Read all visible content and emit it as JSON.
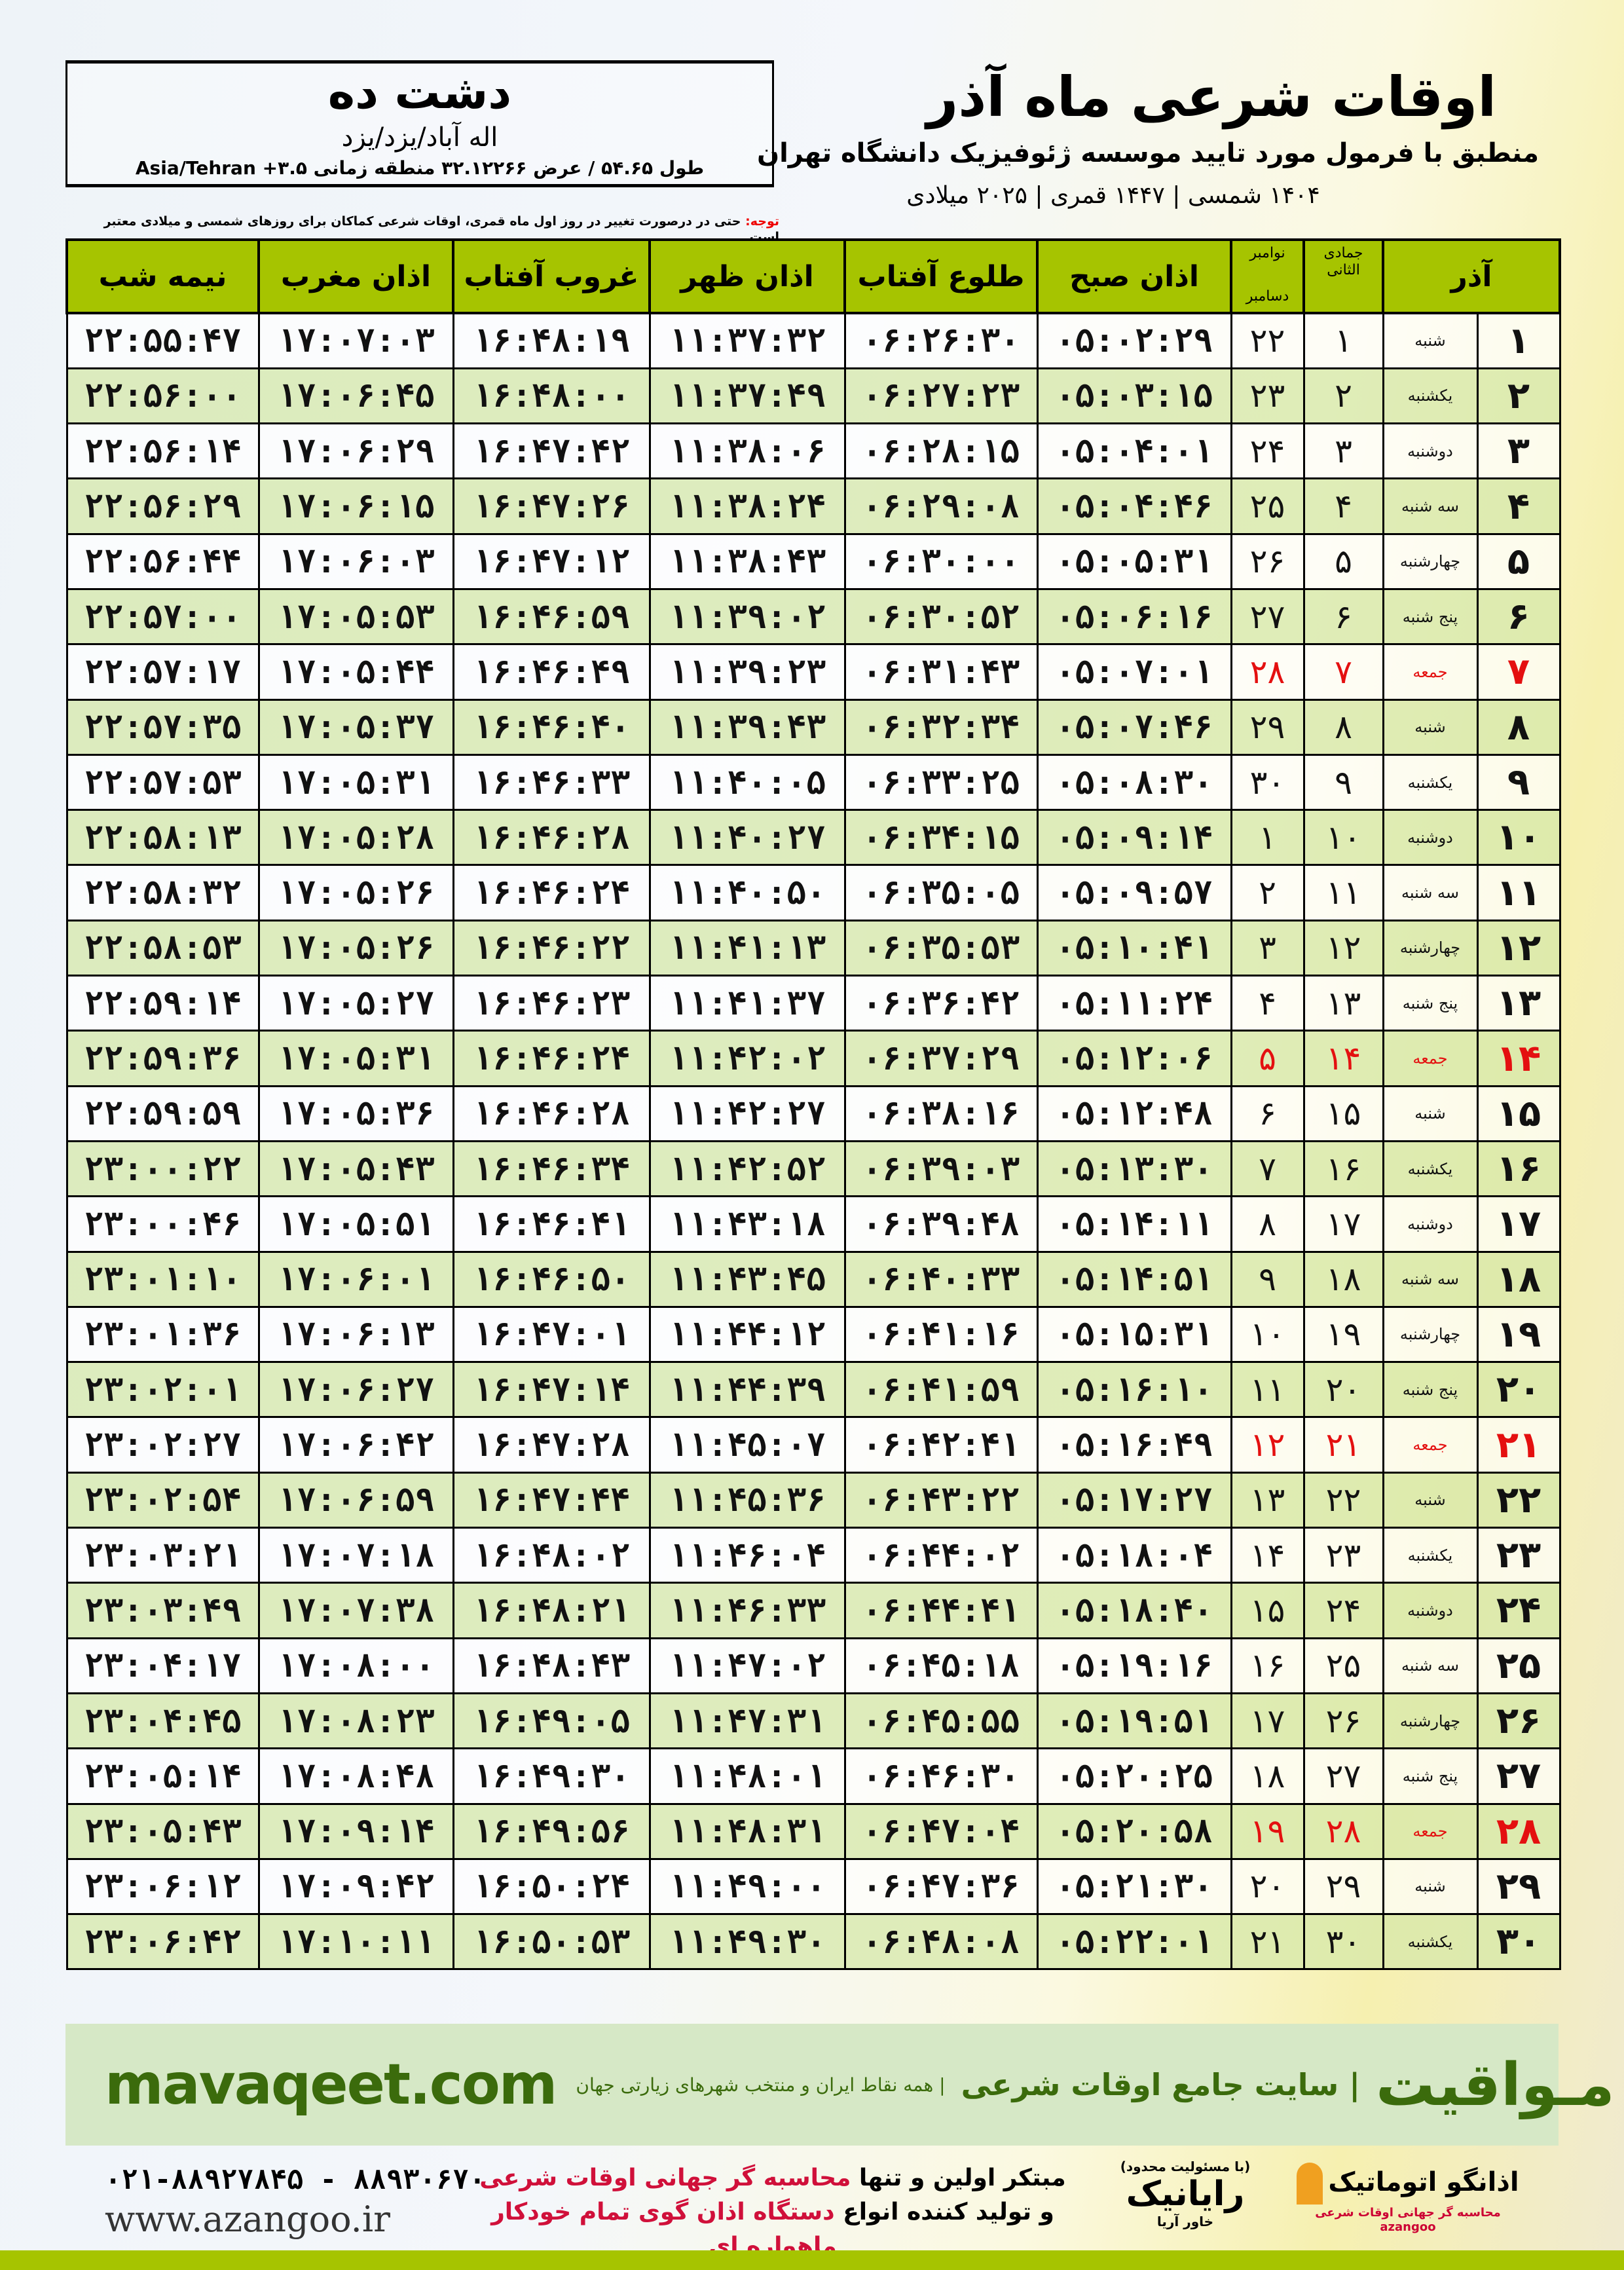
{
  "header": {
    "city": "دشت ده",
    "region": "اله آباد/یزد/یزد",
    "coords": "طول ۵۴.۶۵ / عرض ۳۲.۱۲۲۶۶ منطقه زمانی ۳.۵+ Asia/Tehran",
    "title": "اوقات شرعی ماه آذر",
    "subtitle": "منطبق با فرمول مورد تایید موسسه ژئوفیزیک دانشگاه تهران",
    "years": "۱۴۰۴ شمسی | ۱۴۴۷ قمری | ۲۰۲۵ میلادی",
    "note_label": "توجه:",
    "note_text": " حتی در درصورت تغییر در روز اول ماه قمری، اوقات شرعی کماکان برای روزهای شمسی و میلادی معتبر است."
  },
  "table": {
    "columns": {
      "month": "آذر",
      "hijri": "جمادی الثانی",
      "greg_top": "نوامبر",
      "greg_bottom": "دسامبر",
      "fajr": "اذان صبح",
      "sunrise": "طلوع آفتاب",
      "dhuhr": "اذان ظهر",
      "sunset": "غروب آفتاب",
      "maghrib": "اذان مغرب",
      "midnight": "نیمه شب"
    },
    "friday_color": "#e41010",
    "header_color": "#a6c400",
    "rows": [
      [
        "۱",
        "شنبه",
        "۱",
        "۲۲",
        "۰۵:۰۲:۲۹",
        "۰۶:۲۶:۳۰",
        "۱۱:۳۷:۳۲",
        "۱۶:۴۸:۱۹",
        "۱۷:۰۷:۰۳",
        "۲۲:۵۵:۴۷"
      ],
      [
        "۲",
        "یکشنبه",
        "۲",
        "۲۳",
        "۰۵:۰۳:۱۵",
        "۰۶:۲۷:۲۳",
        "۱۱:۳۷:۴۹",
        "۱۶:۴۸:۰۰",
        "۱۷:۰۶:۴۵",
        "۲۲:۵۶:۰۰"
      ],
      [
        "۳",
        "دوشنبه",
        "۳",
        "۲۴",
        "۰۵:۰۴:۰۱",
        "۰۶:۲۸:۱۵",
        "۱۱:۳۸:۰۶",
        "۱۶:۴۷:۴۲",
        "۱۷:۰۶:۲۹",
        "۲۲:۵۶:۱۴"
      ],
      [
        "۴",
        "سه شنبه",
        "۴",
        "۲۵",
        "۰۵:۰۴:۴۶",
        "۰۶:۲۹:۰۸",
        "۱۱:۳۸:۲۴",
        "۱۶:۴۷:۲۶",
        "۱۷:۰۶:۱۵",
        "۲۲:۵۶:۲۹"
      ],
      [
        "۵",
        "چهارشنبه",
        "۵",
        "۲۶",
        "۰۵:۰۵:۳۱",
        "۰۶:۳۰:۰۰",
        "۱۱:۳۸:۴۳",
        "۱۶:۴۷:۱۲",
        "۱۷:۰۶:۰۳",
        "۲۲:۵۶:۴۴"
      ],
      [
        "۶",
        "پنج شنبه",
        "۶",
        "۲۷",
        "۰۵:۰۶:۱۶",
        "۰۶:۳۰:۵۲",
        "۱۱:۳۹:۰۲",
        "۱۶:۴۶:۵۹",
        "۱۷:۰۵:۵۳",
        "۲۲:۵۷:۰۰"
      ],
      [
        "۷",
        "جمعه",
        "۷",
        "۲۸",
        "۰۵:۰۷:۰۱",
        "۰۶:۳۱:۴۳",
        "۱۱:۳۹:۲۳",
        "۱۶:۴۶:۴۹",
        "۱۷:۰۵:۴۴",
        "۲۲:۵۷:۱۷"
      ],
      [
        "۸",
        "شنبه",
        "۸",
        "۲۹",
        "۰۵:۰۷:۴۶",
        "۰۶:۳۲:۳۴",
        "۱۱:۳۹:۴۳",
        "۱۶:۴۶:۴۰",
        "۱۷:۰۵:۳۷",
        "۲۲:۵۷:۳۵"
      ],
      [
        "۹",
        "یکشنبه",
        "۹",
        "۳۰",
        "۰۵:۰۸:۳۰",
        "۰۶:۳۳:۲۵",
        "۱۱:۴۰:۰۵",
        "۱۶:۴۶:۳۳",
        "۱۷:۰۵:۳۱",
        "۲۲:۵۷:۵۳"
      ],
      [
        "۱۰",
        "دوشنبه",
        "۱۰",
        "۱",
        "۰۵:۰۹:۱۴",
        "۰۶:۳۴:۱۵",
        "۱۱:۴۰:۲۷",
        "۱۶:۴۶:۲۸",
        "۱۷:۰۵:۲۸",
        "۲۲:۵۸:۱۳"
      ],
      [
        "۱۱",
        "سه شنبه",
        "۱۱",
        "۲",
        "۰۵:۰۹:۵۷",
        "۰۶:۳۵:۰۵",
        "۱۱:۴۰:۵۰",
        "۱۶:۴۶:۲۴",
        "۱۷:۰۵:۲۶",
        "۲۲:۵۸:۳۲"
      ],
      [
        "۱۲",
        "چهارشنبه",
        "۱۲",
        "۳",
        "۰۵:۱۰:۴۱",
        "۰۶:۳۵:۵۳",
        "۱۱:۴۱:۱۳",
        "۱۶:۴۶:۲۲",
        "۱۷:۰۵:۲۶",
        "۲۲:۵۸:۵۳"
      ],
      [
        "۱۳",
        "پنج شنبه",
        "۱۳",
        "۴",
        "۰۵:۱۱:۲۴",
        "۰۶:۳۶:۴۲",
        "۱۱:۴۱:۳۷",
        "۱۶:۴۶:۲۳",
        "۱۷:۰۵:۲۷",
        "۲۲:۵۹:۱۴"
      ],
      [
        "۱۴",
        "جمعه",
        "۱۴",
        "۵",
        "۰۵:۱۲:۰۶",
        "۰۶:۳۷:۲۹",
        "۱۱:۴۲:۰۲",
        "۱۶:۴۶:۲۴",
        "۱۷:۰۵:۳۱",
        "۲۲:۵۹:۳۶"
      ],
      [
        "۱۵",
        "شنبه",
        "۱۵",
        "۶",
        "۰۵:۱۲:۴۸",
        "۰۶:۳۸:۱۶",
        "۱۱:۴۲:۲۷",
        "۱۶:۴۶:۲۸",
        "۱۷:۰۵:۳۶",
        "۲۲:۵۹:۵۹"
      ],
      [
        "۱۶",
        "یکشنبه",
        "۱۶",
        "۷",
        "۰۵:۱۳:۳۰",
        "۰۶:۳۹:۰۳",
        "۱۱:۴۲:۵۲",
        "۱۶:۴۶:۳۴",
        "۱۷:۰۵:۴۳",
        "۲۳:۰۰:۲۲"
      ],
      [
        "۱۷",
        "دوشنبه",
        "۱۷",
        "۸",
        "۰۵:۱۴:۱۱",
        "۰۶:۳۹:۴۸",
        "۱۱:۴۳:۱۸",
        "۱۶:۴۶:۴۱",
        "۱۷:۰۵:۵۱",
        "۲۳:۰۰:۴۶"
      ],
      [
        "۱۸",
        "سه شنبه",
        "۱۸",
        "۹",
        "۰۵:۱۴:۵۱",
        "۰۶:۴۰:۳۳",
        "۱۱:۴۳:۴۵",
        "۱۶:۴۶:۵۰",
        "۱۷:۰۶:۰۱",
        "۲۳:۰۱:۱۰"
      ],
      [
        "۱۹",
        "چهارشنبه",
        "۱۹",
        "۱۰",
        "۰۵:۱۵:۳۱",
        "۰۶:۴۱:۱۶",
        "۱۱:۴۴:۱۲",
        "۱۶:۴۷:۰۱",
        "۱۷:۰۶:۱۳",
        "۲۳:۰۱:۳۶"
      ],
      [
        "۲۰",
        "پنج شنبه",
        "۲۰",
        "۱۱",
        "۰۵:۱۶:۱۰",
        "۰۶:۴۱:۵۹",
        "۱۱:۴۴:۳۹",
        "۱۶:۴۷:۱۴",
        "۱۷:۰۶:۲۷",
        "۲۳:۰۲:۰۱"
      ],
      [
        "۲۱",
        "جمعه",
        "۲۱",
        "۱۲",
        "۰۵:۱۶:۴۹",
        "۰۶:۴۲:۴۱",
        "۱۱:۴۵:۰۷",
        "۱۶:۴۷:۲۸",
        "۱۷:۰۶:۴۲",
        "۲۳:۰۲:۲۷"
      ],
      [
        "۲۲",
        "شنبه",
        "۲۲",
        "۱۳",
        "۰۵:۱۷:۲۷",
        "۰۶:۴۳:۲۲",
        "۱۱:۴۵:۳۶",
        "۱۶:۴۷:۴۴",
        "۱۷:۰۶:۵۹",
        "۲۳:۰۲:۵۴"
      ],
      [
        "۲۳",
        "یکشنبه",
        "۲۳",
        "۱۴",
        "۰۵:۱۸:۰۴",
        "۰۶:۴۴:۰۲",
        "۱۱:۴۶:۰۴",
        "۱۶:۴۸:۰۲",
        "۱۷:۰۷:۱۸",
        "۲۳:۰۳:۲۱"
      ],
      [
        "۲۴",
        "دوشنبه",
        "۲۴",
        "۱۵",
        "۰۵:۱۸:۴۰",
        "۰۶:۴۴:۴۱",
        "۱۱:۴۶:۳۳",
        "۱۶:۴۸:۲۱",
        "۱۷:۰۷:۳۸",
        "۲۳:۰۳:۴۹"
      ],
      [
        "۲۵",
        "سه شنبه",
        "۲۵",
        "۱۶",
        "۰۵:۱۹:۱۶",
        "۰۶:۴۵:۱۸",
        "۱۱:۴۷:۰۲",
        "۱۶:۴۸:۴۳",
        "۱۷:۰۸:۰۰",
        "۲۳:۰۴:۱۷"
      ],
      [
        "۲۶",
        "چهارشنبه",
        "۲۶",
        "۱۷",
        "۰۵:۱۹:۵۱",
        "۰۶:۴۵:۵۵",
        "۱۱:۴۷:۳۱",
        "۱۶:۴۹:۰۵",
        "۱۷:۰۸:۲۳",
        "۲۳:۰۴:۴۵"
      ],
      [
        "۲۷",
        "پنج شنبه",
        "۲۷",
        "۱۸",
        "۰۵:۲۰:۲۵",
        "۰۶:۴۶:۳۰",
        "۱۱:۴۸:۰۱",
        "۱۶:۴۹:۳۰",
        "۱۷:۰۸:۴۸",
        "۲۳:۰۵:۱۴"
      ],
      [
        "۲۸",
        "جمعه",
        "۲۸",
        "۱۹",
        "۰۵:۲۰:۵۸",
        "۰۶:۴۷:۰۴",
        "۱۱:۴۸:۳۱",
        "۱۶:۴۹:۵۶",
        "۱۷:۰۹:۱۴",
        "۲۳:۰۵:۴۳"
      ],
      [
        "۲۹",
        "شنبه",
        "۲۹",
        "۲۰",
        "۰۵:۲۱:۳۰",
        "۰۶:۴۷:۳۶",
        "۱۱:۴۹:۰۰",
        "۱۶:۵۰:۲۴",
        "۱۷:۰۹:۴۲",
        "۲۳:۰۶:۱۲"
      ],
      [
        "۳۰",
        "یکشنبه",
        "۳۰",
        "۲۱",
        "۰۵:۲۲:۰۱",
        "۰۶:۴۸:۰۸",
        "۱۱:۴۹:۳۰",
        "۱۶:۵۰:۵۳",
        "۱۷:۱۰:۱۱",
        "۲۳:۰۶:۴۲"
      ]
    ]
  },
  "banner": {
    "brand": "مـواقیت",
    "slogan": "| سایت جامع اوقات شرعی",
    "sub": "| همه نقاط ایران و منتخب شهرهای زیارتی جهان",
    "site": "mavaqeet.com",
    "color": "#3b6b0c",
    "background": "#d6e8c6"
  },
  "footer": {
    "phone": "۰۲۱-۸۸۹۲۷۸۴۵ - ۸۸۹۳۰۶۷۰",
    "web": "www.azangoo.ir",
    "promo1_a": "مبتکر اولین و تنها ",
    "promo1_b": "محاسبه گر جهانی اوقات شرعی",
    "promo2_a": "و تولید کننده انواع ",
    "promo2_b": "دستگاه اذان گوی تمام خودکار ماهواره ای",
    "logo_raianik": "رایانیک",
    "logo_raianik_sub": "خاور آریا",
    "logo_raianik_tag": "(با مسئولیت محدود)",
    "logo_azangoo": "اذانگو اتوماتیک",
    "logo_azangoo_sub": "محاسبه گر جهانی اوقات شرعی",
    "logo_azangoo_en": "azangoo"
  }
}
